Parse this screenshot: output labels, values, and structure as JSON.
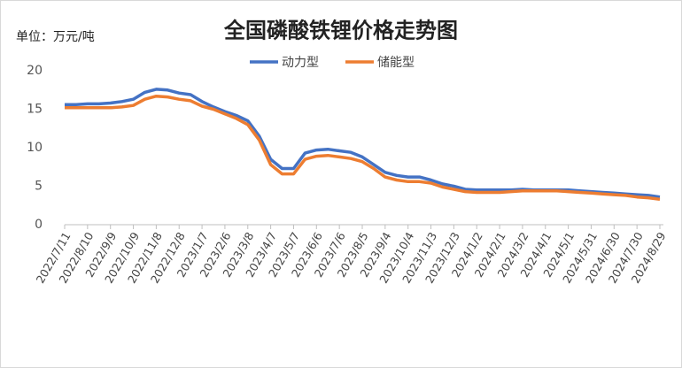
{
  "chart_data": {
    "type": "line",
    "title": "全国磷酸铁锂价格走势图",
    "unit_label": "单位：万元/吨",
    "categories": [
      "2022/7/11",
      null,
      "2022/8/10",
      null,
      "2022/9/9",
      null,
      "2022/10/9",
      null,
      "2022/11/8",
      null,
      "2022/12/8",
      null,
      "2023/1/7",
      null,
      "2023/2/6",
      null,
      "2023/3/8",
      null,
      "2023/4/7",
      null,
      "2023/5/7",
      null,
      "2023/6/6",
      null,
      "2023/7/6",
      null,
      "2023/8/5",
      null,
      "2023/9/4",
      null,
      "2023/10/4",
      null,
      "2023/11/3",
      null,
      "2023/12/3",
      null,
      "2024/1/2",
      null,
      "2024/2/1",
      null,
      "2024/3/2",
      null,
      "2024/4/1",
      null,
      "2024/5/1",
      null,
      "2024/5/31",
      null,
      "2024/6/30",
      null,
      "2024/7/30",
      null,
      "2024/8/29"
    ],
    "series": [
      {
        "name": "动力型",
        "color": "#4472c4",
        "values": [
          15.6,
          15.6,
          15.7,
          15.7,
          15.8,
          16.0,
          16.3,
          17.2,
          17.6,
          17.5,
          17.1,
          16.9,
          16.0,
          15.3,
          14.7,
          14.2,
          13.5,
          11.5,
          8.5,
          7.3,
          7.3,
          9.3,
          9.7,
          9.8,
          9.6,
          9.4,
          8.8,
          7.8,
          6.8,
          6.4,
          6.2,
          6.2,
          5.8,
          5.3,
          5.0,
          4.6,
          4.5,
          4.5,
          4.5,
          4.5,
          4.6,
          4.5,
          4.5,
          4.5,
          4.5,
          4.4,
          4.3,
          4.2,
          4.1,
          4.0,
          3.9,
          3.8,
          3.6
        ]
      },
      {
        "name": "储能型",
        "color": "#ed7d31",
        "values": [
          15.2,
          15.2,
          15.2,
          15.2,
          15.2,
          15.3,
          15.5,
          16.3,
          16.7,
          16.6,
          16.3,
          16.1,
          15.4,
          15.0,
          14.4,
          13.8,
          13.0,
          11.0,
          7.8,
          6.6,
          6.6,
          8.5,
          8.9,
          9.0,
          8.8,
          8.6,
          8.2,
          7.3,
          6.2,
          5.8,
          5.6,
          5.6,
          5.4,
          4.9,
          4.6,
          4.3,
          4.2,
          4.2,
          4.2,
          4.3,
          4.4,
          4.4,
          4.4,
          4.4,
          4.3,
          4.2,
          4.1,
          4.0,
          3.9,
          3.8,
          3.6,
          3.5,
          3.3
        ]
      }
    ],
    "ylim": [
      0,
      20
    ],
    "yticks": [
      0,
      5,
      10,
      15,
      20
    ],
    "grid": false
  }
}
